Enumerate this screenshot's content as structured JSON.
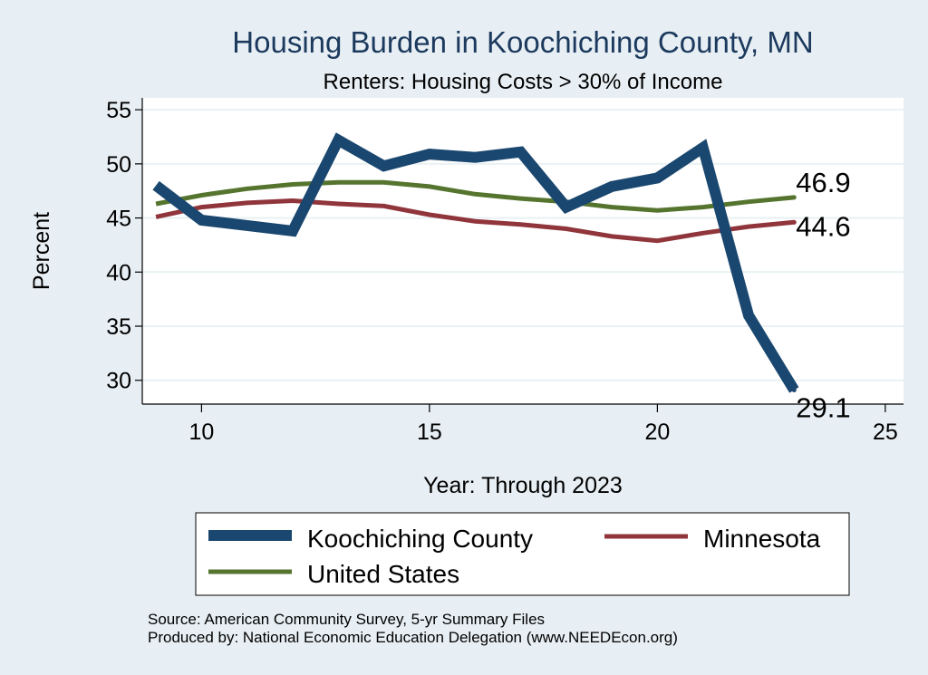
{
  "chart_data": {
    "type": "line",
    "title": "Housing Burden in Koochiching County, MN",
    "subtitle": "Renters: Housing Costs > 30% of Income",
    "xlabel": "Year: Through 2023",
    "ylabel": "Percent",
    "xlim": [
      8.7,
      25.4
    ],
    "ylim": [
      27.8,
      56.1
    ],
    "xticks": [
      10,
      15,
      20,
      25
    ],
    "yticks": [
      30,
      35,
      40,
      45,
      50,
      55
    ],
    "grid": true,
    "legend_position": "bottom",
    "x": [
      9,
      10,
      11,
      12,
      13,
      14,
      15,
      16,
      17,
      18,
      19,
      20,
      21,
      22,
      23
    ],
    "series": [
      {
        "name": "Koochiching County",
        "color": "#1a476f",
        "values": [
          48.0,
          44.8,
          44.3,
          43.8,
          52.2,
          49.8,
          50.9,
          50.6,
          51.1,
          46.0,
          47.9,
          48.7,
          51.5,
          36.0,
          29.1
        ],
        "end_label": "29.1"
      },
      {
        "name": "Minnesota",
        "color": "#90353b",
        "values": [
          45.1,
          46.0,
          46.4,
          46.6,
          46.3,
          46.1,
          45.3,
          44.7,
          44.4,
          44.0,
          43.3,
          42.9,
          43.6,
          44.2,
          44.6
        ],
        "end_label": "44.6"
      },
      {
        "name": "United States",
        "color": "#55752f",
        "values": [
          46.3,
          47.1,
          47.7,
          48.1,
          48.3,
          48.3,
          47.9,
          47.2,
          46.8,
          46.5,
          46.0,
          45.7,
          46.0,
          46.5,
          46.9
        ],
        "end_label": "46.9"
      }
    ]
  },
  "notes": {
    "source": "Source: American Community Survey, 5-yr Summary Files",
    "produced_by": "Produced by: National Economic Education Delegation (www.NEEDEcon.org)"
  }
}
